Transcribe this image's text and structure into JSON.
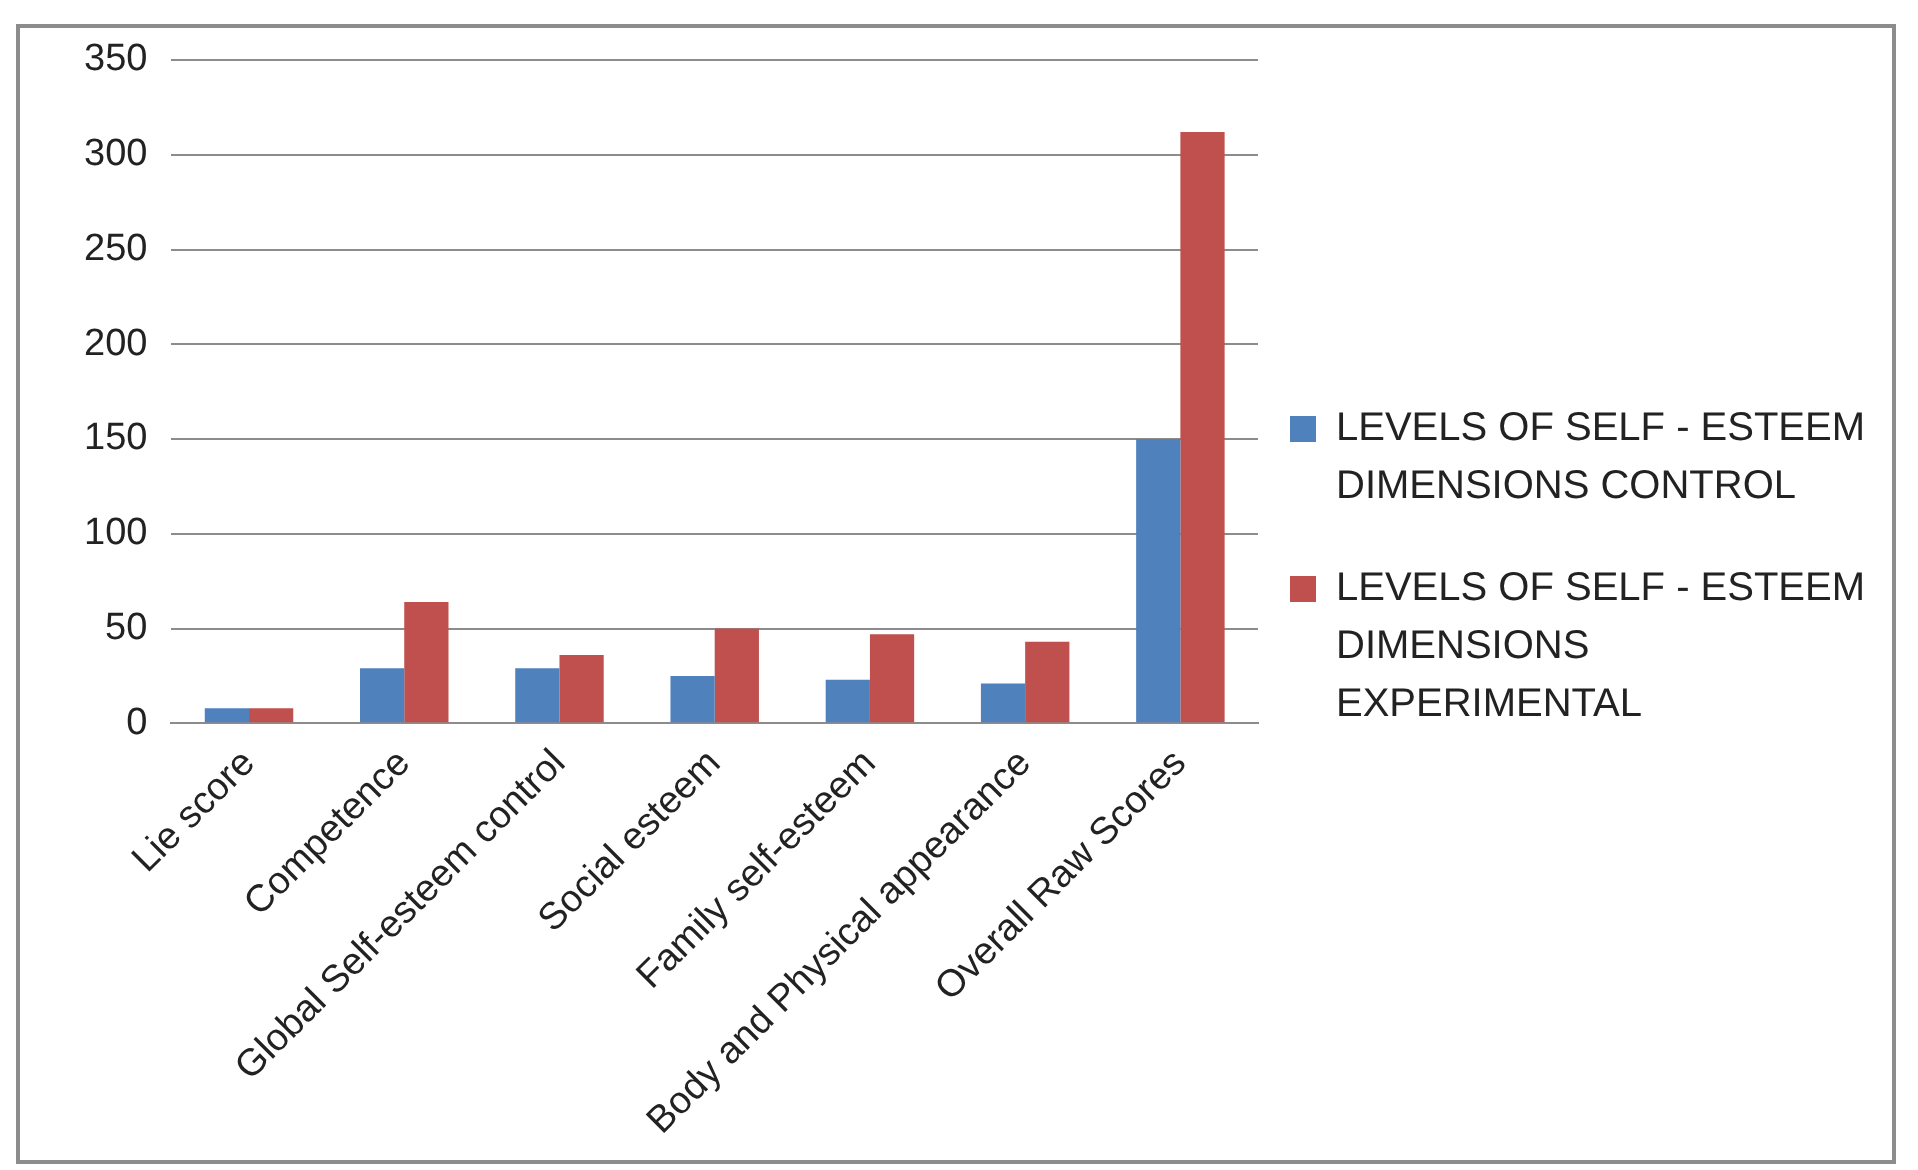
{
  "chart_data": {
    "type": "bar",
    "categories": [
      "Lie score",
      "Competence",
      "Global Self-esteem control",
      "Social esteem",
      "Family self-esteem",
      "Body and Physical appearance",
      "Overall Raw Scores"
    ],
    "series": [
      {
        "name": "LEVELS OF SELF - ESTEEM DIMENSIONS CONTROL",
        "color": "#4f81bd",
        "values": [
          8,
          29,
          29,
          25,
          23,
          21,
          150
        ]
      },
      {
        "name": "LEVELS OF SELF - ESTEEM DIMENSIONS EXPERIMENTAL",
        "color": "#c0504d",
        "values": [
          8,
          64,
          36,
          50,
          47,
          43,
          312
        ]
      }
    ],
    "ylim": [
      0,
      350
    ],
    "yticks": [
      0,
      50,
      100,
      150,
      200,
      250,
      300,
      350
    ],
    "grid": "y",
    "legend": "right"
  }
}
